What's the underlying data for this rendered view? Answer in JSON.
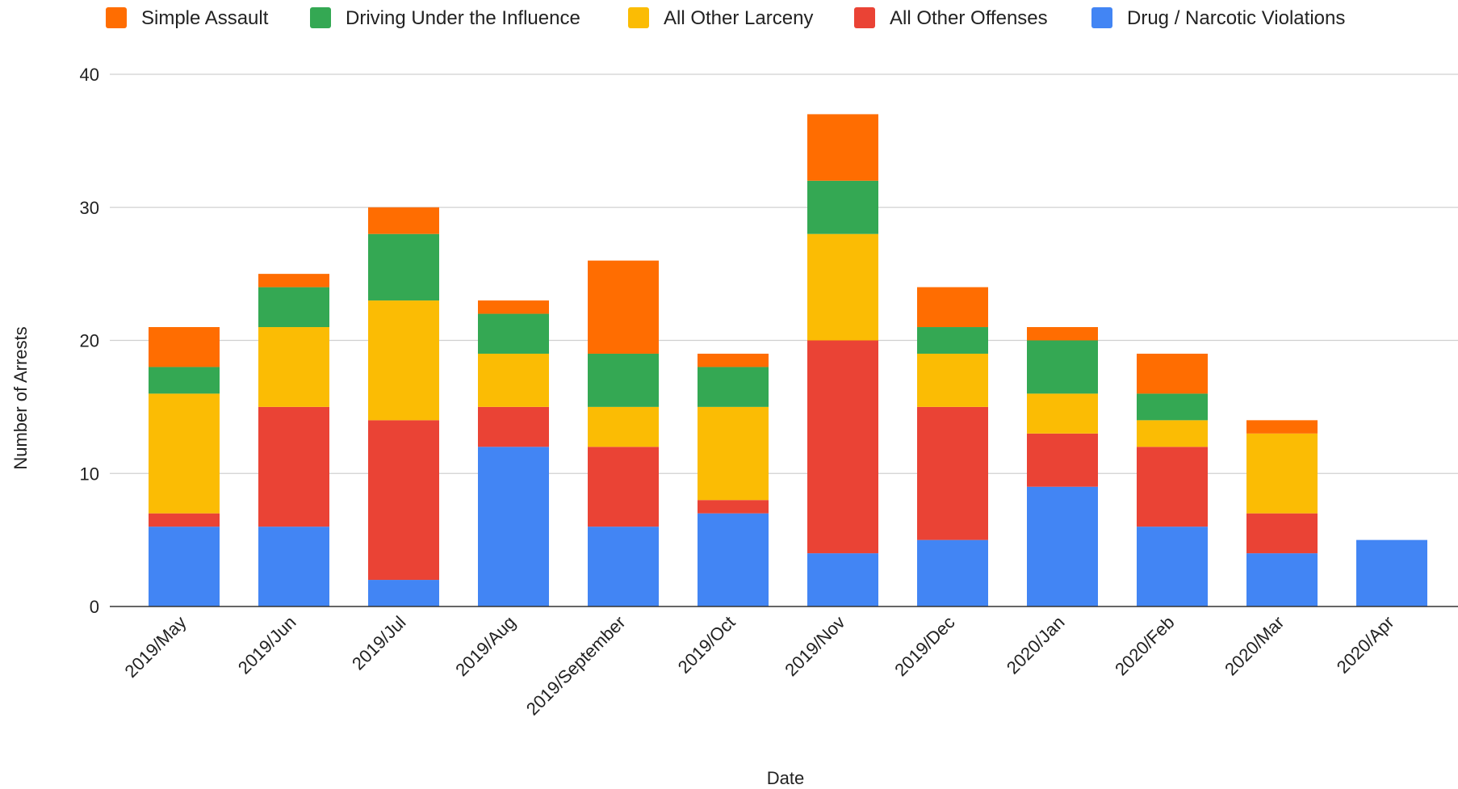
{
  "chart_data": {
    "type": "bar",
    "stacked": true,
    "xlabel": "Date",
    "ylabel": "Number of Arrests",
    "ylim": [
      0,
      40
    ],
    "yticks": [
      0,
      10,
      20,
      30,
      40
    ],
    "grid": true,
    "legend_position": "top",
    "categories": [
      "2019/May",
      "2019/Jun",
      "2019/Jul",
      "2019/Aug",
      "2019/September",
      "2019/Oct",
      "2019/Nov",
      "2019/Dec",
      "2020/Jan",
      "2020/Feb",
      "2020/Mar",
      "2020/Apr"
    ],
    "series": [
      {
        "name": "Drug / Narcotic Violations",
        "color": "#4285f4",
        "values": [
          6,
          6,
          2,
          12,
          6,
          7,
          4,
          5,
          9,
          6,
          4,
          5
        ]
      },
      {
        "name": "All Other Offenses",
        "color": "#ea4335",
        "values": [
          1,
          9,
          12,
          3,
          6,
          1,
          16,
          10,
          4,
          6,
          3,
          0
        ]
      },
      {
        "name": "All Other Larceny",
        "color": "#fbbc04",
        "values": [
          9,
          6,
          9,
          4,
          3,
          7,
          8,
          4,
          3,
          2,
          6,
          0
        ]
      },
      {
        "name": "Driving Under the Influence",
        "color": "#34a853",
        "values": [
          2,
          3,
          5,
          3,
          4,
          3,
          4,
          2,
          4,
          2,
          0,
          0
        ]
      },
      {
        "name": "Simple Assault",
        "color": "#ff6d01",
        "values": [
          3,
          1,
          2,
          1,
          7,
          1,
          5,
          3,
          1,
          3,
          1,
          0
        ]
      }
    ],
    "legend_order": [
      "Simple Assault",
      "Driving Under the Influence",
      "All Other Larceny",
      "All Other Offenses",
      "Drug / Narcotic Violations"
    ]
  }
}
